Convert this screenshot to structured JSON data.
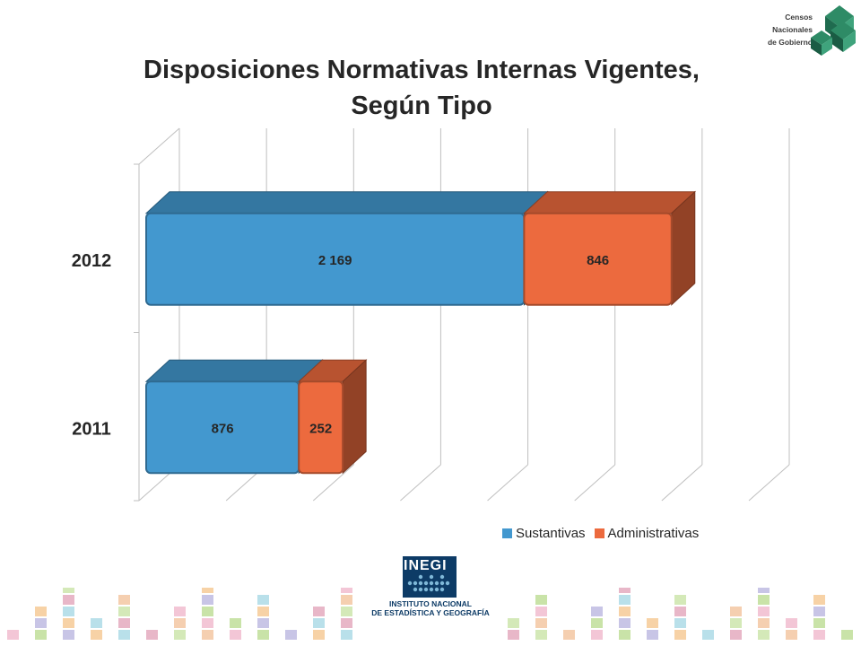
{
  "header": {
    "title_line1": "Disposiciones Normativas Internas Vigentes,",
    "title_line2": "Según Tipo"
  },
  "logos": {
    "censos_line1": "Censos",
    "censos_line2": "Nacionales",
    "censos_line3": "de Gobierno",
    "inegi_word": "INEGI",
    "inegi_line1": "INSTITUTO NACIONAL",
    "inegi_line2": "DE ESTADÍSTICA Y GEOGRAFÍA"
  },
  "colors": {
    "sustantivas": "#4398cf",
    "administrativas": "#ec6a3e",
    "inegi_blue": "#0d3b66",
    "cng_green": "#1f7a5a"
  },
  "chart_data": {
    "type": "bar",
    "orientation": "horizontal",
    "stacked": true,
    "style": "3d",
    "categories": [
      "2012",
      "2011"
    ],
    "series": [
      {
        "name": "Sustantivas",
        "values": [
          2169,
          876
        ],
        "labels": [
          "2 169",
          "876"
        ]
      },
      {
        "name": "Administrativas",
        "values": [
          846,
          252
        ],
        "labels": [
          "846",
          "252"
        ]
      }
    ],
    "xlim": [
      0,
      3500
    ],
    "grid": true,
    "legend": "bottom-right"
  }
}
